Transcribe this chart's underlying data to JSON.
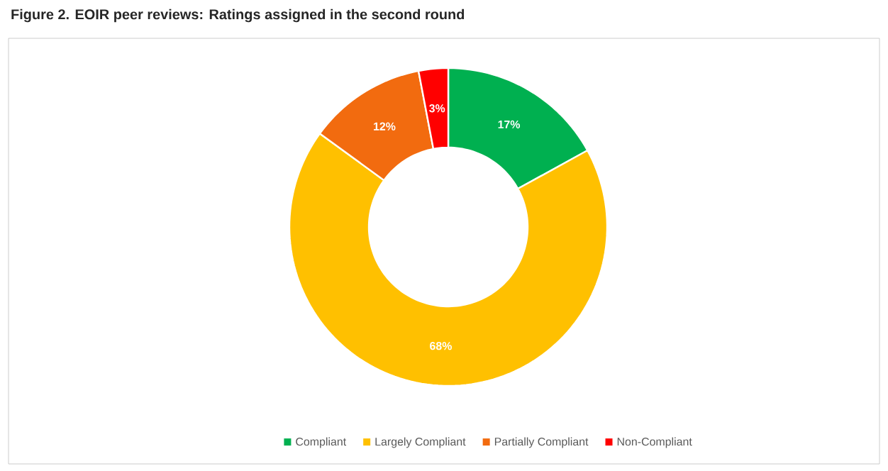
{
  "chart_data": {
    "type": "donut",
    "title": "Figure 2. EOIR peer reviews: Ratings assigned in the second round",
    "categories": [
      "Compliant",
      "Largely Compliant",
      "Partially Compliant",
      "Non-Compliant"
    ],
    "values": [
      17,
      68,
      12,
      3
    ],
    "colors": [
      "#00b050",
      "#ffc000",
      "#f26b0f",
      "#ff0000"
    ],
    "value_labels": [
      "17%",
      "68%",
      "12%",
      "3%"
    ],
    "legend": "bottom"
  }
}
